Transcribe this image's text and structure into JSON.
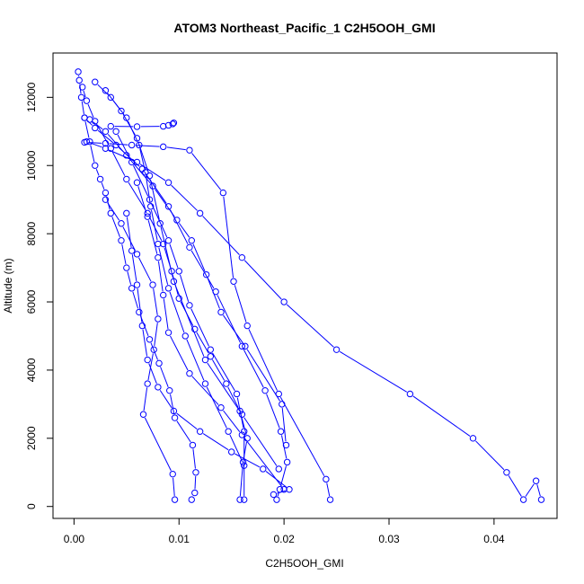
{
  "chart_data": {
    "type": "line",
    "title": "ATOM3 Northeast_Pacific_1 C2H5OOH_GMI",
    "xlabel": "C2H5OOH_GMI",
    "ylabel": "Altitude (m)",
    "xlim": [
      -0.002,
      0.046
    ],
    "ylim": [
      -350,
      13300
    ],
    "xticks": [
      0.0,
      0.01,
      0.02,
      0.03,
      0.04
    ],
    "xtick_labels": [
      "0.00",
      "0.01",
      "0.02",
      "0.03",
      "0.04"
    ],
    "yticks": [
      0,
      2000,
      4000,
      6000,
      8000,
      10000,
      12000
    ],
    "ytick_labels": [
      "0",
      "2000",
      "4000",
      "6000",
      "8000",
      "10000",
      "12000"
    ],
    "marker": "open-circle",
    "color": "#0000ff",
    "grid": false,
    "legend": "none",
    "series": [
      {
        "x": [
          0.0004,
          0.0005,
          0.0007,
          0.001,
          0.0015,
          0.002,
          0.0025,
          0.003,
          0.0035,
          0.0045,
          0.005,
          0.0055,
          0.0062,
          0.0072,
          0.0081,
          0.0091,
          0.0096,
          0.0113,
          0.0116,
          0.0115,
          0.0112
        ],
        "y": [
          12750,
          12500,
          12000,
          11400,
          10700,
          10000,
          9600,
          9200,
          8600,
          7800,
          7000,
          6400,
          5700,
          4900,
          4200,
          3400,
          2600,
          1800,
          1000,
          400,
          200
        ]
      },
      {
        "x": [
          0.0008,
          0.0012,
          0.002,
          0.0035,
          0.005,
          0.007,
          0.0085,
          0.0093,
          0.01,
          0.0115,
          0.013,
          0.0145,
          0.0158,
          0.0165,
          0.0161,
          0.0158
        ],
        "y": [
          12300,
          11900,
          11300,
          10500,
          9600,
          8600,
          7700,
          6900,
          6100,
          5200,
          4400,
          3600,
          2800,
          2000,
          1300,
          200
        ]
      },
      {
        "x": [
          0.001,
          0.002,
          0.004,
          0.0065,
          0.009,
          0.011,
          0.0135,
          0.016,
          0.0182,
          0.0197,
          0.0203,
          0.0196,
          0.0193
        ],
        "y": [
          11400,
          11100,
          10600,
          9900,
          8800,
          7600,
          6300,
          4700,
          3400,
          2200,
          1300,
          500,
          200
        ]
      },
      {
        "x": [
          0.001,
          0.003,
          0.0055,
          0.0085,
          0.011,
          0.0142,
          0.0152,
          0.0165,
          0.0195,
          0.024,
          0.0244
        ],
        "y": [
          10680,
          10650,
          10600,
          10550,
          10450,
          9200,
          6600,
          5300,
          3300,
          800,
          200
        ]
      },
      {
        "x": [
          0.0012,
          0.003,
          0.006,
          0.009,
          0.012,
          0.016,
          0.02,
          0.025,
          0.032,
          0.038,
          0.0412,
          0.0428,
          0.044,
          0.0445
        ],
        "y": [
          10700,
          10500,
          10100,
          9500,
          8600,
          7300,
          6000,
          4600,
          3300,
          2000,
          1000,
          200,
          750,
          200
        ]
      },
      {
        "x": [
          0.0015,
          0.003,
          0.005,
          0.0075,
          0.0098,
          0.0112,
          0.0126,
          0.014,
          0.0163,
          0.0198,
          0.0202
        ],
        "y": [
          11350,
          11000,
          10300,
          9400,
          8400,
          7800,
          6800,
          5700,
          4700,
          3000,
          1800
        ]
      },
      {
        "x": [
          0.002,
          0.0035,
          0.005,
          0.0062,
          0.0068,
          0.0073,
          0.008,
          0.009,
          0.0106,
          0.0125,
          0.0147,
          0.0162
        ],
        "y": [
          12450,
          12000,
          11400,
          10600,
          9800,
          8800,
          7700,
          6400,
          5000,
          3600,
          2200,
          1200
        ]
      },
      {
        "x": [
          0.003,
          0.0045,
          0.006,
          0.0072,
          0.0082,
          0.0095,
          0.0125,
          0.016,
          0.0195
        ],
        "y": [
          12200,
          11600,
          10800,
          9700,
          8300,
          6600,
          4300,
          2700,
          1100
        ]
      },
      {
        "x": [
          0.0035,
          0.006,
          0.0085,
          0.009,
          0.0094,
          0.0095
        ],
        "y": [
          11150,
          11140,
          11150,
          11180,
          11220,
          11250
        ]
      },
      {
        "x": [
          0.005,
          0.0055,
          0.006,
          0.0065,
          0.007,
          0.008,
          0.0095,
          0.012,
          0.015,
          0.018,
          0.0205,
          0.019
        ],
        "y": [
          8600,
          7500,
          6500,
          5300,
          4300,
          3500,
          2800,
          2200,
          1600,
          1100,
          500,
          350
        ]
      },
      {
        "x": [
          0.003,
          0.0045,
          0.006,
          0.0075,
          0.008,
          0.0076,
          0.007,
          0.0066,
          0.0094,
          0.0096
        ],
        "y": [
          9000,
          8300,
          7400,
          6500,
          5500,
          4600,
          3600,
          2700,
          950,
          200
        ]
      },
      {
        "x": [
          0.004,
          0.0055,
          0.0072,
          0.009,
          0.01,
          0.011,
          0.013,
          0.0155,
          0.0162,
          0.0162
        ],
        "y": [
          11000,
          10100,
          9000,
          7800,
          6900,
          5900,
          4600,
          3300,
          2200,
          200
        ]
      },
      {
        "x": [
          0.006,
          0.007,
          0.008,
          0.0085,
          0.009,
          0.011,
          0.014,
          0.016,
          0.02
        ],
        "y": [
          9500,
          8500,
          7300,
          6200,
          5100,
          3900,
          2900,
          2100,
          500
        ]
      }
    ]
  }
}
